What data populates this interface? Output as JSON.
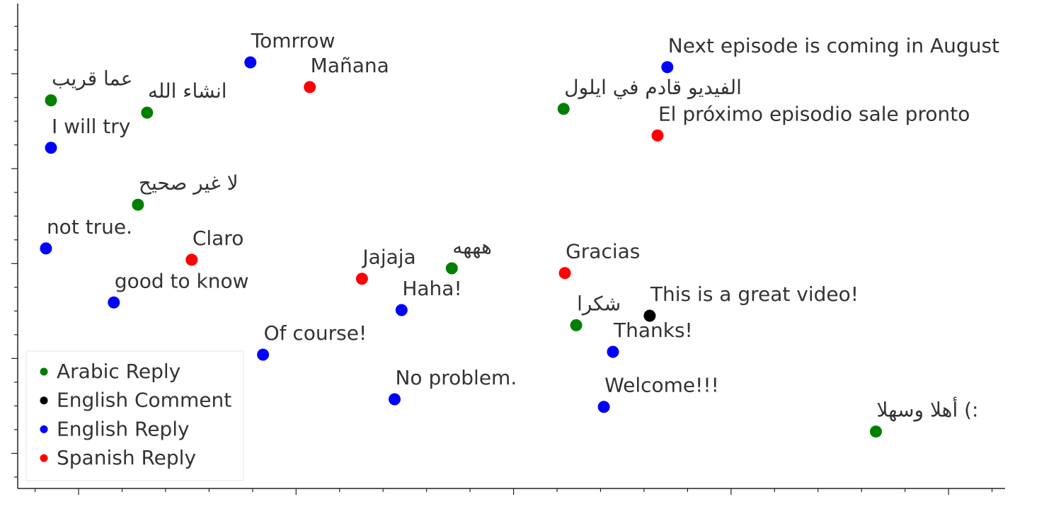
{
  "chart_data": {
    "type": "scatter",
    "xlim": [
      -0.28,
      4.26
    ],
    "ylim": [
      -0.37,
      4.74
    ],
    "xticks": [
      -0.2,
      0,
      0.2,
      0.4,
      0.6,
      0.8,
      1,
      1.2,
      1.4,
      1.6,
      1.8,
      2,
      2.2,
      2.4,
      2.6,
      2.8,
      3,
      3.2,
      3.4,
      3.6,
      3.8,
      4,
      4.2
    ],
    "yticks": [
      -0.25,
      0,
      0.25,
      0.5,
      0.75,
      1,
      1.25,
      1.5,
      1.75,
      2,
      2.25,
      2.5,
      2.75,
      3,
      3.25,
      3.5,
      3.75,
      4,
      4.25,
      4.5
    ],
    "legend": "lower left",
    "series": [
      {
        "name": "Arabic Reply",
        "color": "green",
        "x": [
          -0.127,
          0.315,
          0.273,
          1.716,
          2.23,
          2.288,
          3.666
        ],
        "y": [
          3.72,
          3.59,
          2.62,
          1.95,
          3.63,
          1.35,
          0.23
        ],
        "labels": [
          "عما قريب",
          "انشاء الله",
          "لا غير صحيح",
          "هههه",
          "الفيديو قادم في ايلول",
          "شكرا",
          "أهلا وسهلا (:"
        ]
      },
      {
        "name": "English Comment",
        "color": "black",
        "x": [
          2.626
        ],
        "y": [
          1.45
        ],
        "labels": [
          "This is a great video!"
        ]
      },
      {
        "name": "English Reply",
        "color": "blue",
        "x": [
          0.79,
          -0.127,
          -0.15,
          0.162,
          0.848,
          1.453,
          1.485,
          2.707,
          2.457,
          2.415
        ],
        "y": [
          4.12,
          3.22,
          2.16,
          1.59,
          1.04,
          0.57,
          1.51,
          4.07,
          1.07,
          0.49
        ],
        "labels": [
          "Tomrrow",
          "I will try",
          "not true.",
          "good to know",
          "Of course!",
          "No problem.",
          "Haha!",
          "Next episode is coming in August",
          "Thanks!",
          "Welcome!!!"
        ]
      },
      {
        "name": "Spanish Reply",
        "color": "red",
        "x": [
          1.063,
          0.52,
          1.303,
          2.236,
          2.662
        ],
        "y": [
          3.86,
          2.04,
          1.84,
          1.9,
          3.35
        ],
        "labels": [
          "Mañana",
          "Claro",
          "Jajaja",
          "Gracias",
          "El próximo episodio sale pronto"
        ]
      }
    ]
  }
}
